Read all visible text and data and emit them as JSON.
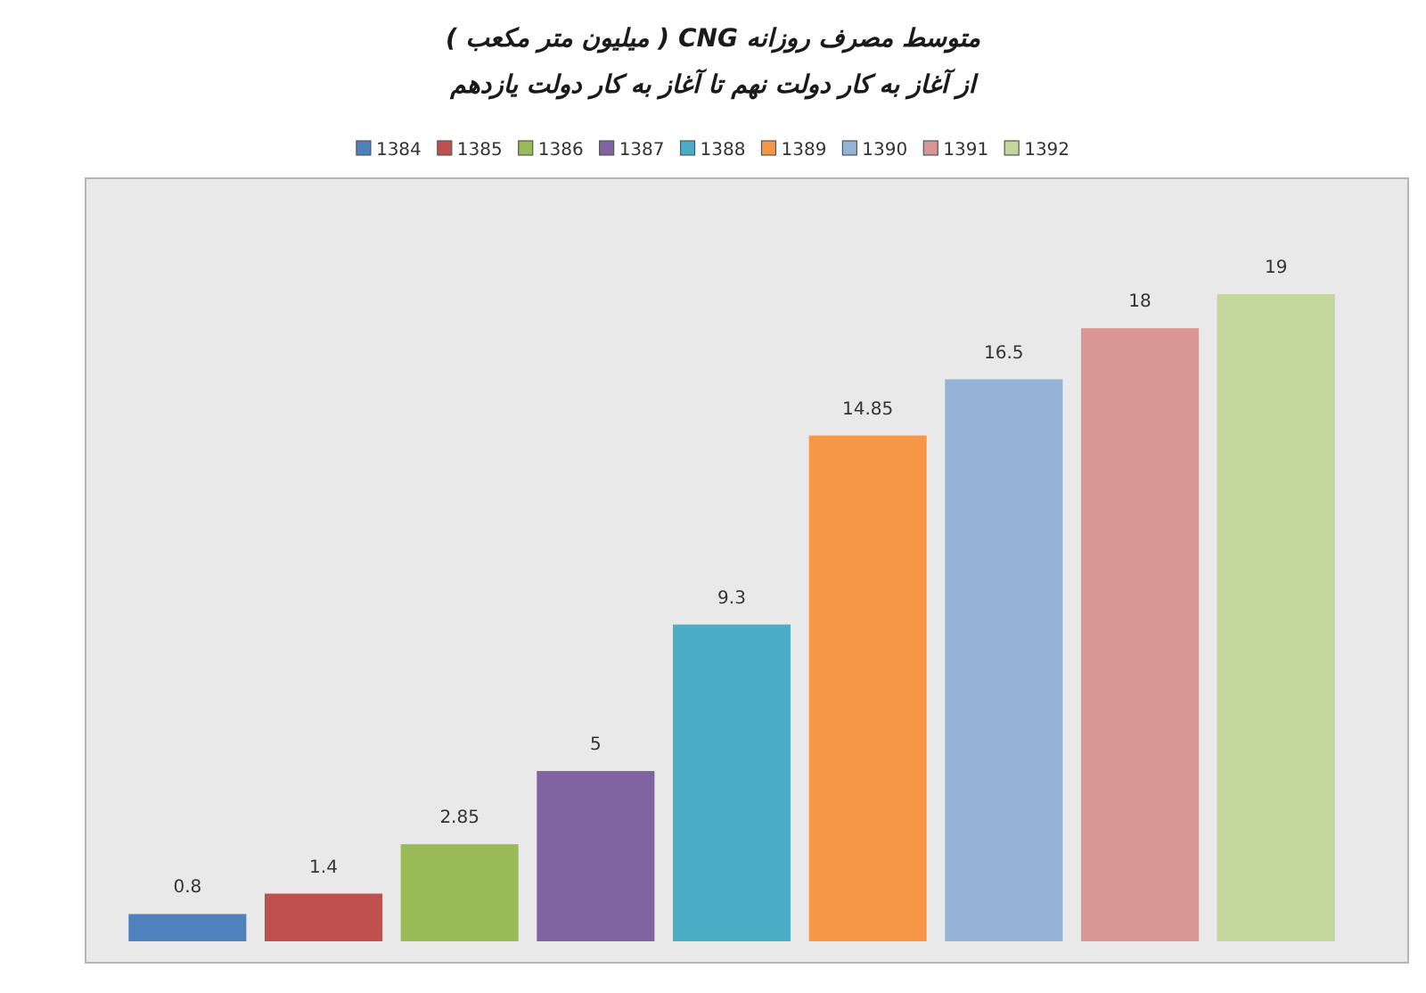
{
  "chart_data": {
    "type": "bar",
    "title": "متوسط مصرف روزانه CNG ( میلیون متر مکعب )",
    "subtitle": "از آغاز به کار دولت نهم تا آغاز به کار دولت یازدهم",
    "categories": [
      null
    ],
    "series": [
      {
        "name": "1384",
        "color": "#4f81bd",
        "values": [
          0.8
        ]
      },
      {
        "name": "1385",
        "color": "#c0504d",
        "values": [
          1.4
        ]
      },
      {
        "name": "1386",
        "color": "#9bbb59",
        "values": [
          2.85
        ]
      },
      {
        "name": "1387",
        "color": "#8064a2",
        "values": [
          5
        ]
      },
      {
        "name": "1388",
        "color": "#4bacc6",
        "values": [
          9.3
        ]
      },
      {
        "name": "1389",
        "color": "#f79646",
        "values": [
          14.85
        ]
      },
      {
        "name": "1390",
        "color": "#95b3d7",
        "values": [
          16.5
        ]
      },
      {
        "name": "1391",
        "color": "#d99694",
        "values": [
          18
        ]
      },
      {
        "name": "1392",
        "color": "#c3d69b",
        "values": [
          19
        ]
      }
    ],
    "data_labels": true,
    "legend": "top"
  }
}
